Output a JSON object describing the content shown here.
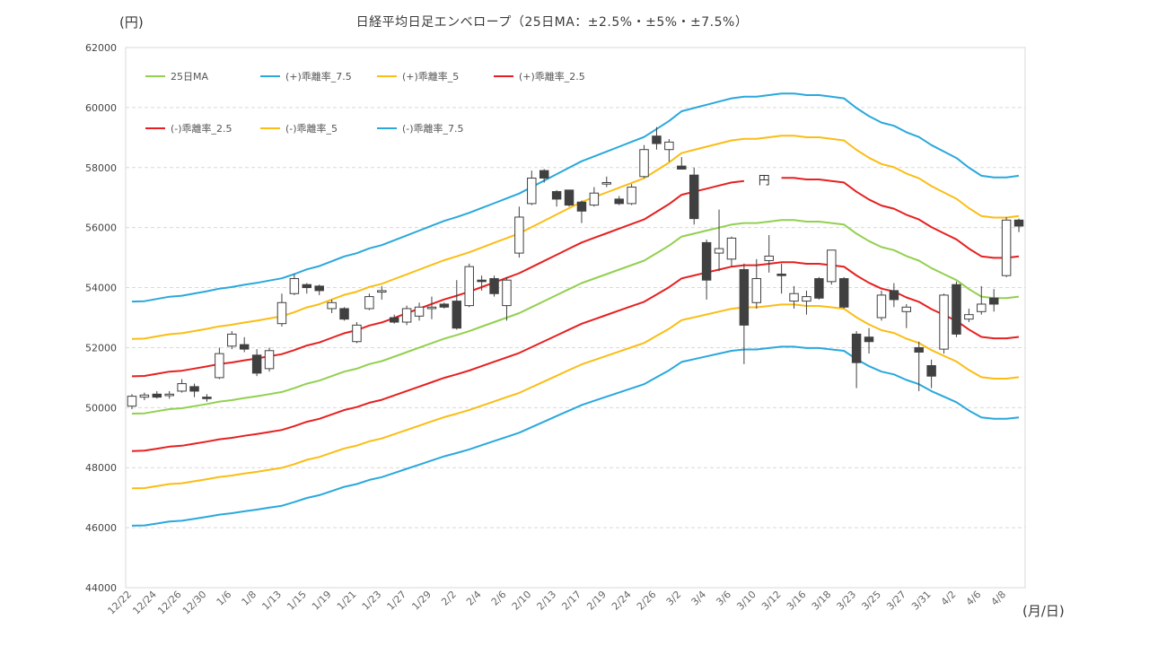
{
  "chart_data": {
    "type": "candlestick+line",
    "title": "日経平均日足エンベロープ（25日MA：±2.5%・±5%・±7.5%）",
    "ylabel_unit": "(円)",
    "xlabel_unit": "(月/日)",
    "ylim": [
      44000,
      62000
    ],
    "yticks": [
      44000,
      46000,
      48000,
      50000,
      52000,
      54000,
      56000,
      58000,
      60000,
      62000
    ],
    "grid": "horizontal dashed",
    "legend_position": "top-left",
    "annotation": "円",
    "annotation_at_index": 50,
    "x_tick_labels": [
      "12/22",
      "12/24",
      "12/26",
      "12/30",
      "1/6",
      "1/8",
      "1/13",
      "1/15",
      "1/19",
      "1/21",
      "1/23",
      "1/27",
      "1/29",
      "2/2",
      "2/4",
      "2/6",
      "2/10",
      "2/13",
      "2/17",
      "2/19",
      "2/24",
      "2/26",
      "3/2",
      "3/4",
      "3/6",
      "3/10",
      "3/12",
      "3/16",
      "3/18",
      "3/23",
      "3/25",
      "3/27",
      "3/31",
      "4/2",
      "4/6",
      "4/8"
    ],
    "dates": [
      "12/22",
      "12/23",
      "12/24",
      "12/25",
      "12/26",
      "12/29",
      "12/30",
      "1/5",
      "1/6",
      "1/7",
      "1/8",
      "1/9",
      "1/13",
      "1/14",
      "1/15",
      "1/16",
      "1/19",
      "1/20",
      "1/21",
      "1/22",
      "1/23",
      "1/26",
      "1/27",
      "1/28",
      "1/29",
      "1/30",
      "2/2",
      "2/3",
      "2/4",
      "2/5",
      "2/6",
      "2/9",
      "2/10",
      "2/12",
      "2/13",
      "2/16",
      "2/17",
      "2/18",
      "2/19",
      "2/20",
      "2/24",
      "2/25",
      "2/26",
      "2/27",
      "3/2",
      "3/3",
      "3/4",
      "3/5",
      "3/6",
      "3/9",
      "3/10",
      "3/11",
      "3/12",
      "3/13",
      "3/16",
      "3/17",
      "3/18",
      "3/19",
      "3/23",
      "3/24",
      "3/25",
      "3/26",
      "3/27",
      "3/30",
      "3/31",
      "4/1",
      "4/2",
      "4/3",
      "4/6",
      "4/7",
      "4/8",
      "4/9"
    ],
    "candles": [
      {
        "o": 50050,
        "h": 50450,
        "l": 49950,
        "c": 50380
      },
      {
        "o": 50350,
        "h": 50500,
        "l": 50250,
        "c": 50420
      },
      {
        "o": 50450,
        "h": 50550,
        "l": 50300,
        "c": 50350
      },
      {
        "o": 50400,
        "h": 50550,
        "l": 50300,
        "c": 50450
      },
      {
        "o": 50550,
        "h": 50950,
        "l": 50500,
        "c": 50800
      },
      {
        "o": 50700,
        "h": 50800,
        "l": 50350,
        "c": 50550
      },
      {
        "o": 50350,
        "h": 50450,
        "l": 50200,
        "c": 50300
      },
      {
        "o": 51000,
        "h": 52000,
        "l": 50950,
        "c": 51800
      },
      {
        "o": 52050,
        "h": 52550,
        "l": 51950,
        "c": 52450
      },
      {
        "o": 52100,
        "h": 52350,
        "l": 51850,
        "c": 51950
      },
      {
        "o": 51750,
        "h": 51950,
        "l": 51050,
        "c": 51150
      },
      {
        "o": 51300,
        "h": 52000,
        "l": 51200,
        "c": 51900
      },
      {
        "o": 52800,
        "h": 53800,
        "l": 52700,
        "c": 53500
      },
      {
        "o": 53800,
        "h": 54450,
        "l": 53750,
        "c": 54300
      },
      {
        "o": 54100,
        "h": 54150,
        "l": 53800,
        "c": 54000
      },
      {
        "o": 54050,
        "h": 54100,
        "l": 53750,
        "c": 53900
      },
      {
        "o": 53300,
        "h": 53600,
        "l": 53150,
        "c": 53500
      },
      {
        "o": 53300,
        "h": 53350,
        "l": 52900,
        "c": 52950
      },
      {
        "o": 52200,
        "h": 52850,
        "l": 52150,
        "c": 52750
      },
      {
        "o": 53300,
        "h": 53800,
        "l": 53250,
        "c": 53700
      },
      {
        "o": 53850,
        "h": 54050,
        "l": 53600,
        "c": 53900
      },
      {
        "o": 53000,
        "h": 53100,
        "l": 52800,
        "c": 52850
      },
      {
        "o": 52850,
        "h": 53400,
        "l": 52750,
        "c": 53300
      },
      {
        "o": 53050,
        "h": 53500,
        "l": 52900,
        "c": 53350
      },
      {
        "o": 53300,
        "h": 53700,
        "l": 52950,
        "c": 53350
      },
      {
        "o": 53450,
        "h": 53500,
        "l": 53300,
        "c": 53350
      },
      {
        "o": 53550,
        "h": 54250,
        "l": 52600,
        "c": 52650
      },
      {
        "o": 53400,
        "h": 54800,
        "l": 53350,
        "c": 54700
      },
      {
        "o": 54250,
        "h": 54400,
        "l": 53900,
        "c": 54200
      },
      {
        "o": 54300,
        "h": 54400,
        "l": 53700,
        "c": 53800
      },
      {
        "o": 53400,
        "h": 54350,
        "l": 52900,
        "c": 54250
      },
      {
        "o": 55150,
        "h": 56700,
        "l": 55000,
        "c": 56350
      },
      {
        "o": 56800,
        "h": 57900,
        "l": 56750,
        "c": 57650
      },
      {
        "o": 57900,
        "h": 57950,
        "l": 57500,
        "c": 57650
      },
      {
        "o": 57200,
        "h": 57250,
        "l": 56700,
        "c": 56950
      },
      {
        "o": 57250,
        "h": 57250,
        "l": 56700,
        "c": 56750
      },
      {
        "o": 56850,
        "h": 56900,
        "l": 56150,
        "c": 56550
      },
      {
        "o": 56750,
        "h": 57350,
        "l": 56700,
        "c": 57150
      },
      {
        "o": 57450,
        "h": 57700,
        "l": 57350,
        "c": 57500
      },
      {
        "o": 56950,
        "h": 57050,
        "l": 56750,
        "c": 56800
      },
      {
        "o": 56800,
        "h": 57450,
        "l": 56750,
        "c": 57350
      },
      {
        "o": 57700,
        "h": 58750,
        "l": 57650,
        "c": 58600
      },
      {
        "o": 59050,
        "h": 59350,
        "l": 58600,
        "c": 58800
      },
      {
        "o": 58600,
        "h": 58950,
        "l": 58200,
        "c": 58850
      },
      {
        "o": 58050,
        "h": 58350,
        "l": 57950,
        "c": 57950
      },
      {
        "o": 57750,
        "h": 58000,
        "l": 56100,
        "c": 56300
      },
      {
        "o": 55500,
        "h": 55600,
        "l": 53600,
        "c": 54250
      },
      {
        "o": 55150,
        "h": 56600,
        "l": 54550,
        "c": 55300
      },
      {
        "o": 54950,
        "h": 55700,
        "l": 54700,
        "c": 55650
      },
      {
        "o": 54600,
        "h": 54800,
        "l": 51450,
        "c": 52750
      },
      {
        "o": 53500,
        "h": 54950,
        "l": 53300,
        "c": 54300
      },
      {
        "o": 54900,
        "h": 55750,
        "l": 54500,
        "c": 55050
      },
      {
        "o": 54450,
        "h": 54800,
        "l": 53800,
        "c": 54400
      },
      {
        "o": 53550,
        "h": 54050,
        "l": 53300,
        "c": 53800
      },
      {
        "o": 53550,
        "h": 53900,
        "l": 53100,
        "c": 53700
      },
      {
        "o": 54300,
        "h": 54350,
        "l": 53600,
        "c": 53650
      },
      {
        "o": 54200,
        "h": 55250,
        "l": 54100,
        "c": 55250
      },
      {
        "o": 54300,
        "h": 54350,
        "l": 53300,
        "c": 53350
      },
      {
        "o": 52450,
        "h": 52550,
        "l": 50650,
        "c": 51500
      },
      {
        "o": 52350,
        "h": 52650,
        "l": 51800,
        "c": 52200
      },
      {
        "o": 53000,
        "h": 53900,
        "l": 52900,
        "c": 53750
      },
      {
        "o": 53900,
        "h": 54150,
        "l": 53350,
        "c": 53600
      },
      {
        "o": 53200,
        "h": 53450,
        "l": 52650,
        "c": 53350
      },
      {
        "o": 52000,
        "h": 52200,
        "l": 50550,
        "c": 51850
      },
      {
        "o": 51400,
        "h": 51600,
        "l": 50650,
        "c": 51050
      },
      {
        "o": 51950,
        "h": 53800,
        "l": 51800,
        "c": 53750
      },
      {
        "o": 54100,
        "h": 54200,
        "l": 52350,
        "c": 52450
      },
      {
        "o": 52950,
        "h": 53300,
        "l": 52850,
        "c": 53100
      },
      {
        "o": 53200,
        "h": 54050,
        "l": 53100,
        "c": 53450
      },
      {
        "o": 53650,
        "h": 53950,
        "l": 53200,
        "c": 53450
      },
      {
        "o": 54400,
        "h": 56350,
        "l": 54350,
        "c": 56250
      },
      {
        "o": 56250,
        "h": 56300,
        "l": 55850,
        "c": 56050
      }
    ],
    "ma25": [
      49800,
      49810,
      49880,
      49950,
      49980,
      50050,
      50120,
      50200,
      50250,
      50320,
      50380,
      50450,
      50520,
      50650,
      50800,
      50900,
      51050,
      51200,
      51300,
      51450,
      51550,
      51700,
      51850,
      52000,
      52150,
      52300,
      52420,
      52550,
      52700,
      52850,
      53000,
      53150,
      53350,
      53550,
      53750,
      53950,
      54150,
      54300,
      54450,
      54600,
      54750,
      54900,
      55150,
      55400,
      55700,
      55800,
      55900,
      56000,
      56100,
      56150,
      56150,
      56200,
      56250,
      56250,
      56200,
      56200,
      56150,
      56100,
      55800,
      55550,
      55350,
      55250,
      55050,
      54900,
      54650,
      54450,
      54250,
      53950,
      53700,
      53650,
      53650,
      53700
    ],
    "series": [
      {
        "name": "25日MA",
        "color": "#92d050",
        "key": "ma25",
        "factor": 1.0
      },
      {
        "name": "(+)乖離率_7.5",
        "color": "#29a8dc",
        "key": "ma25",
        "factor": 1.075
      },
      {
        "name": "(+)乖離率_5",
        "color": "#fbbd14",
        "key": "ma25",
        "factor": 1.05
      },
      {
        "name": "(+)乖離率_2.5",
        "color": "#e62020",
        "key": "ma25",
        "factor": 1.025
      },
      {
        "name": "(-)乖離率_2.5",
        "color": "#e62020",
        "key": "ma25",
        "factor": 0.975
      },
      {
        "name": "(-)乖離率_5",
        "color": "#fbbd14",
        "key": "ma25",
        "factor": 0.95
      },
      {
        "name": "(-)乖離率_7.5",
        "color": "#29a8dc",
        "key": "ma25",
        "factor": 0.925
      }
    ],
    "candle_up_color": "#ffffff",
    "candle_down_color": "#404040"
  }
}
